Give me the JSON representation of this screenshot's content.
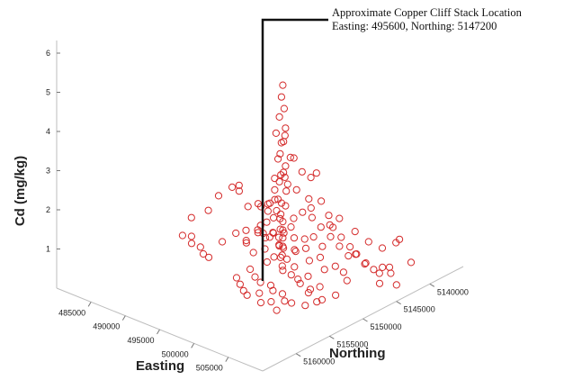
{
  "chart_data": {
    "type": "scatter3d",
    "title": "",
    "xlabel": "Easting",
    "ylabel": "Northing",
    "zlabel": "Cd (mg/kg)",
    "x_ticks": [
      "485000",
      "490000",
      "495000",
      "500000",
      "505000"
    ],
    "y_ticks": [
      "5140000",
      "5145000",
      "5150000",
      "5155000",
      "5160000"
    ],
    "z_ticks": [
      "1",
      "2",
      "3",
      "4",
      "5",
      "6"
    ],
    "zlim": [
      0,
      6
    ],
    "marker": "open-circle",
    "marker_color": "#d42a2a",
    "grid": false,
    "stack_line_color": "#111111",
    "annotation": {
      "line1": "Approximate Copper Cliff Stack Location",
      "line2": "Easting: 495600, Northing: 5147200",
      "easting": 495600,
      "northing": 5147200
    },
    "clusters_note": "Points are sampled from the visible point cloud: dense cluster near the stack, spread tails to the east/south.",
    "points": [
      [
        495600,
        5147200,
        4.7
      ],
      [
        495500,
        5147300,
        4.4
      ],
      [
        495700,
        5147100,
        4.1
      ],
      [
        495400,
        5147500,
        3.9
      ],
      [
        495800,
        5147000,
        3.6
      ],
      [
        495200,
        5147800,
        3.5
      ],
      [
        495900,
        5147400,
        3.3
      ],
      [
        496300,
        5147600,
        3.5
      ],
      [
        495300,
        5147100,
        3.2
      ],
      [
        495700,
        5147700,
        3.0
      ],
      [
        496500,
        5147000,
        2.9
      ],
      [
        497500,
        5147500,
        3.0
      ],
      [
        498500,
        5147300,
        2.7
      ],
      [
        499500,
        5147000,
        2.6
      ],
      [
        500500,
        5147200,
        2.8
      ],
      [
        495100,
        5147400,
        2.8
      ],
      [
        495600,
        5146800,
        2.6
      ],
      [
        496000,
        5147900,
        2.5
      ],
      [
        494800,
        5147600,
        2.3
      ],
      [
        495200,
        5146700,
        2.4
      ],
      [
        496800,
        5147700,
        2.3
      ],
      [
        497800,
        5147400,
        2.2
      ],
      [
        499000,
        5146800,
        2.0
      ],
      [
        500000,
        5147500,
        1.9
      ],
      [
        501000,
        5147000,
        2.1
      ],
      [
        502000,
        5146900,
        1.8
      ],
      [
        503000,
        5147300,
        1.6
      ],
      [
        504000,
        5147100,
        1.4
      ],
      [
        505000,
        5146800,
        1.2
      ],
      [
        506000,
        5147000,
        1.1
      ],
      [
        495400,
        5148200,
        2.1
      ],
      [
        495700,
        5148500,
        1.9
      ],
      [
        496200,
        5148000,
        1.8
      ],
      [
        494600,
        5148400,
        1.7
      ],
      [
        495100,
        5148900,
        1.6
      ],
      [
        496000,
        5149000,
        1.5
      ],
      [
        495500,
        5149500,
        1.4
      ],
      [
        494900,
        5149800,
        1.3
      ],
      [
        496400,
        5149500,
        1.2
      ],
      [
        495200,
        5150500,
        1.2
      ],
      [
        496000,
        5150200,
        1.1
      ],
      [
        494000,
        5147500,
        1.6
      ],
      [
        493200,
        5148000,
        1.5
      ],
      [
        492500,
        5147700,
        1.5
      ],
      [
        491500,
        5148200,
        1.4
      ],
      [
        490500,
        5148500,
        1.9
      ],
      [
        490800,
        5148800,
        1.8
      ],
      [
        489000,
        5148000,
        1.7
      ],
      [
        488000,
        5149000,
        1.5
      ],
      [
        487000,
        5149500,
        1.1
      ],
      [
        485500,
        5150500,
        0.9
      ],
      [
        486000,
        5151000,
        0.5
      ],
      [
        486500,
        5151500,
        0.4
      ],
      [
        487500,
        5151200,
        0.35
      ],
      [
        488500,
        5151800,
        0.3
      ],
      [
        489500,
        5152000,
        0.3
      ],
      [
        484500,
        5150800,
        0.4
      ],
      [
        490000,
        5150500,
        0.6
      ],
      [
        493000,
        5150000,
        0.8
      ],
      [
        494000,
        5151000,
        0.9
      ],
      [
        495500,
        5151500,
        0.8
      ],
      [
        496500,
        5150800,
        0.9
      ],
      [
        497500,
        5151500,
        0.7
      ],
      [
        498500,
        5150500,
        0.8
      ],
      [
        499500,
        5151200,
        0.6
      ],
      [
        500500,
        5150500,
        0.7
      ],
      [
        501500,
        5151000,
        0.5
      ],
      [
        502500,
        5150500,
        0.6
      ],
      [
        503500,
        5151200,
        0.4
      ],
      [
        504500,
        5150800,
        0.5
      ],
      [
        505500,
        5151500,
        0.3
      ],
      [
        506500,
        5150500,
        0.4
      ],
      [
        496000,
        5152500,
        0.5
      ],
      [
        497000,
        5152800,
        0.4
      ],
      [
        498000,
        5153000,
        0.35
      ],
      [
        499000,
        5152500,
        0.3
      ],
      [
        500000,
        5153200,
        0.3
      ],
      [
        501000,
        5152800,
        0.25
      ],
      [
        502000,
        5153500,
        0.2
      ],
      [
        495000,
        5153500,
        0.3
      ],
      [
        496000,
        5154000,
        0.25
      ],
      [
        497000,
        5154500,
        0.2
      ],
      [
        498000,
        5155000,
        0.2
      ],
      [
        499000,
        5154200,
        0.25
      ],
      [
        500000,
        5155000,
        0.15
      ],
      [
        501000,
        5154500,
        0.2
      ],
      [
        502500,
        5155200,
        0.15
      ],
      [
        494500,
        5149000,
        1.0
      ],
      [
        495800,
        5147500,
        0.4
      ],
      [
        496200,
        5147200,
        0.3
      ],
      [
        495400,
        5146900,
        0.5
      ],
      [
        497200,
        5147100,
        0.6
      ],
      [
        498200,
        5146600,
        0.9
      ],
      [
        499200,
        5146300,
        1.0
      ],
      [
        500200,
        5146000,
        0.8
      ],
      [
        501200,
        5145800,
        1.1
      ],
      [
        502200,
        5145500,
        0.9
      ],
      [
        503200,
        5145200,
        0.7
      ],
      [
        504200,
        5145000,
        0.8
      ],
      [
        505200,
        5144800,
        0.6
      ],
      [
        506200,
        5144500,
        0.5
      ],
      [
        507200,
        5144200,
        0.6
      ],
      [
        508200,
        5144000,
        0.5
      ],
      [
        507000,
        5146500,
        0.9
      ],
      [
        508500,
        5146000,
        0.7
      ],
      [
        509000,
        5145000,
        0.8
      ],
      [
        510500,
        5145500,
        0.5
      ],
      [
        509500,
        5147000,
        0.6
      ],
      [
        498000,
        5149500,
        1.3
      ],
      [
        499000,
        5149000,
        1.2
      ],
      [
        500000,
        5149800,
        1.0
      ],
      [
        501000,
        5149300,
        1.1
      ],
      [
        502000,
        5149800,
        0.9
      ],
      [
        503000,
        5149200,
        1.0
      ],
      [
        504000,
        5149600,
        0.8
      ],
      [
        505000,
        5149000,
        0.9
      ],
      [
        506000,
        5148800,
        0.8
      ],
      [
        507000,
        5149300,
        0.7
      ],
      [
        496500,
        5146500,
        1.3
      ],
      [
        497500,
        5146200,
        1.5
      ],
      [
        498500,
        5145800,
        1.4
      ],
      [
        499500,
        5145500,
        1.2
      ],
      [
        500500,
        5145200,
        1.3
      ],
      [
        501500,
        5144800,
        1.5
      ],
      [
        503000,
        5144000,
        1.2
      ],
      [
        504500,
        5143500,
        1.0
      ],
      [
        506000,
        5143000,
        0.9
      ],
      [
        507500,
        5142500,
        1.1
      ],
      [
        508500,
        5143000,
        1.3
      ],
      [
        510000,
        5142800,
        0.8
      ],
      [
        495800,
        5148000,
        0.9
      ],
      [
        495300,
        5148300,
        1.0
      ],
      [
        496500,
        5148500,
        1.2
      ],
      [
        497000,
        5149200,
        0.9
      ],
      [
        497800,
        5150000,
        1.0
      ],
      [
        498500,
        5151500,
        0.9
      ],
      [
        500000,
        5151800,
        0.8
      ],
      [
        501500,
        5152000,
        0.7
      ],
      [
        503000,
        5152200,
        0.6
      ],
      [
        504500,
        5152500,
        0.5
      ],
      [
        506000,
        5152800,
        0.4
      ],
      [
        505000,
        5153500,
        0.3
      ],
      [
        503500,
        5154000,
        0.3
      ],
      [
        495600,
        5147200,
        1.0
      ],
      [
        495600,
        5147200,
        0.8
      ],
      [
        495700,
        5147300,
        0.6
      ],
      [
        495500,
        5147100,
        1.2
      ],
      [
        495400,
        5147300,
        1.4
      ],
      [
        495700,
        5146900,
        1.6
      ],
      [
        495300,
        5147600,
        1.8
      ],
      [
        495900,
        5147000,
        2.0
      ],
      [
        495100,
        5147200,
        2.2
      ],
      [
        496100,
        5147400,
        2.4
      ],
      [
        496400,
        5146800,
        1.1
      ],
      [
        494800,
        5146800,
        1.2
      ],
      [
        494500,
        5147000,
        1.4
      ],
      [
        493800,
        5147300,
        0.7
      ],
      [
        493500,
        5148800,
        1.0
      ],
      [
        492000,
        5149000,
        0.9
      ],
      [
        491000,
        5149500,
        0.8
      ]
    ]
  }
}
